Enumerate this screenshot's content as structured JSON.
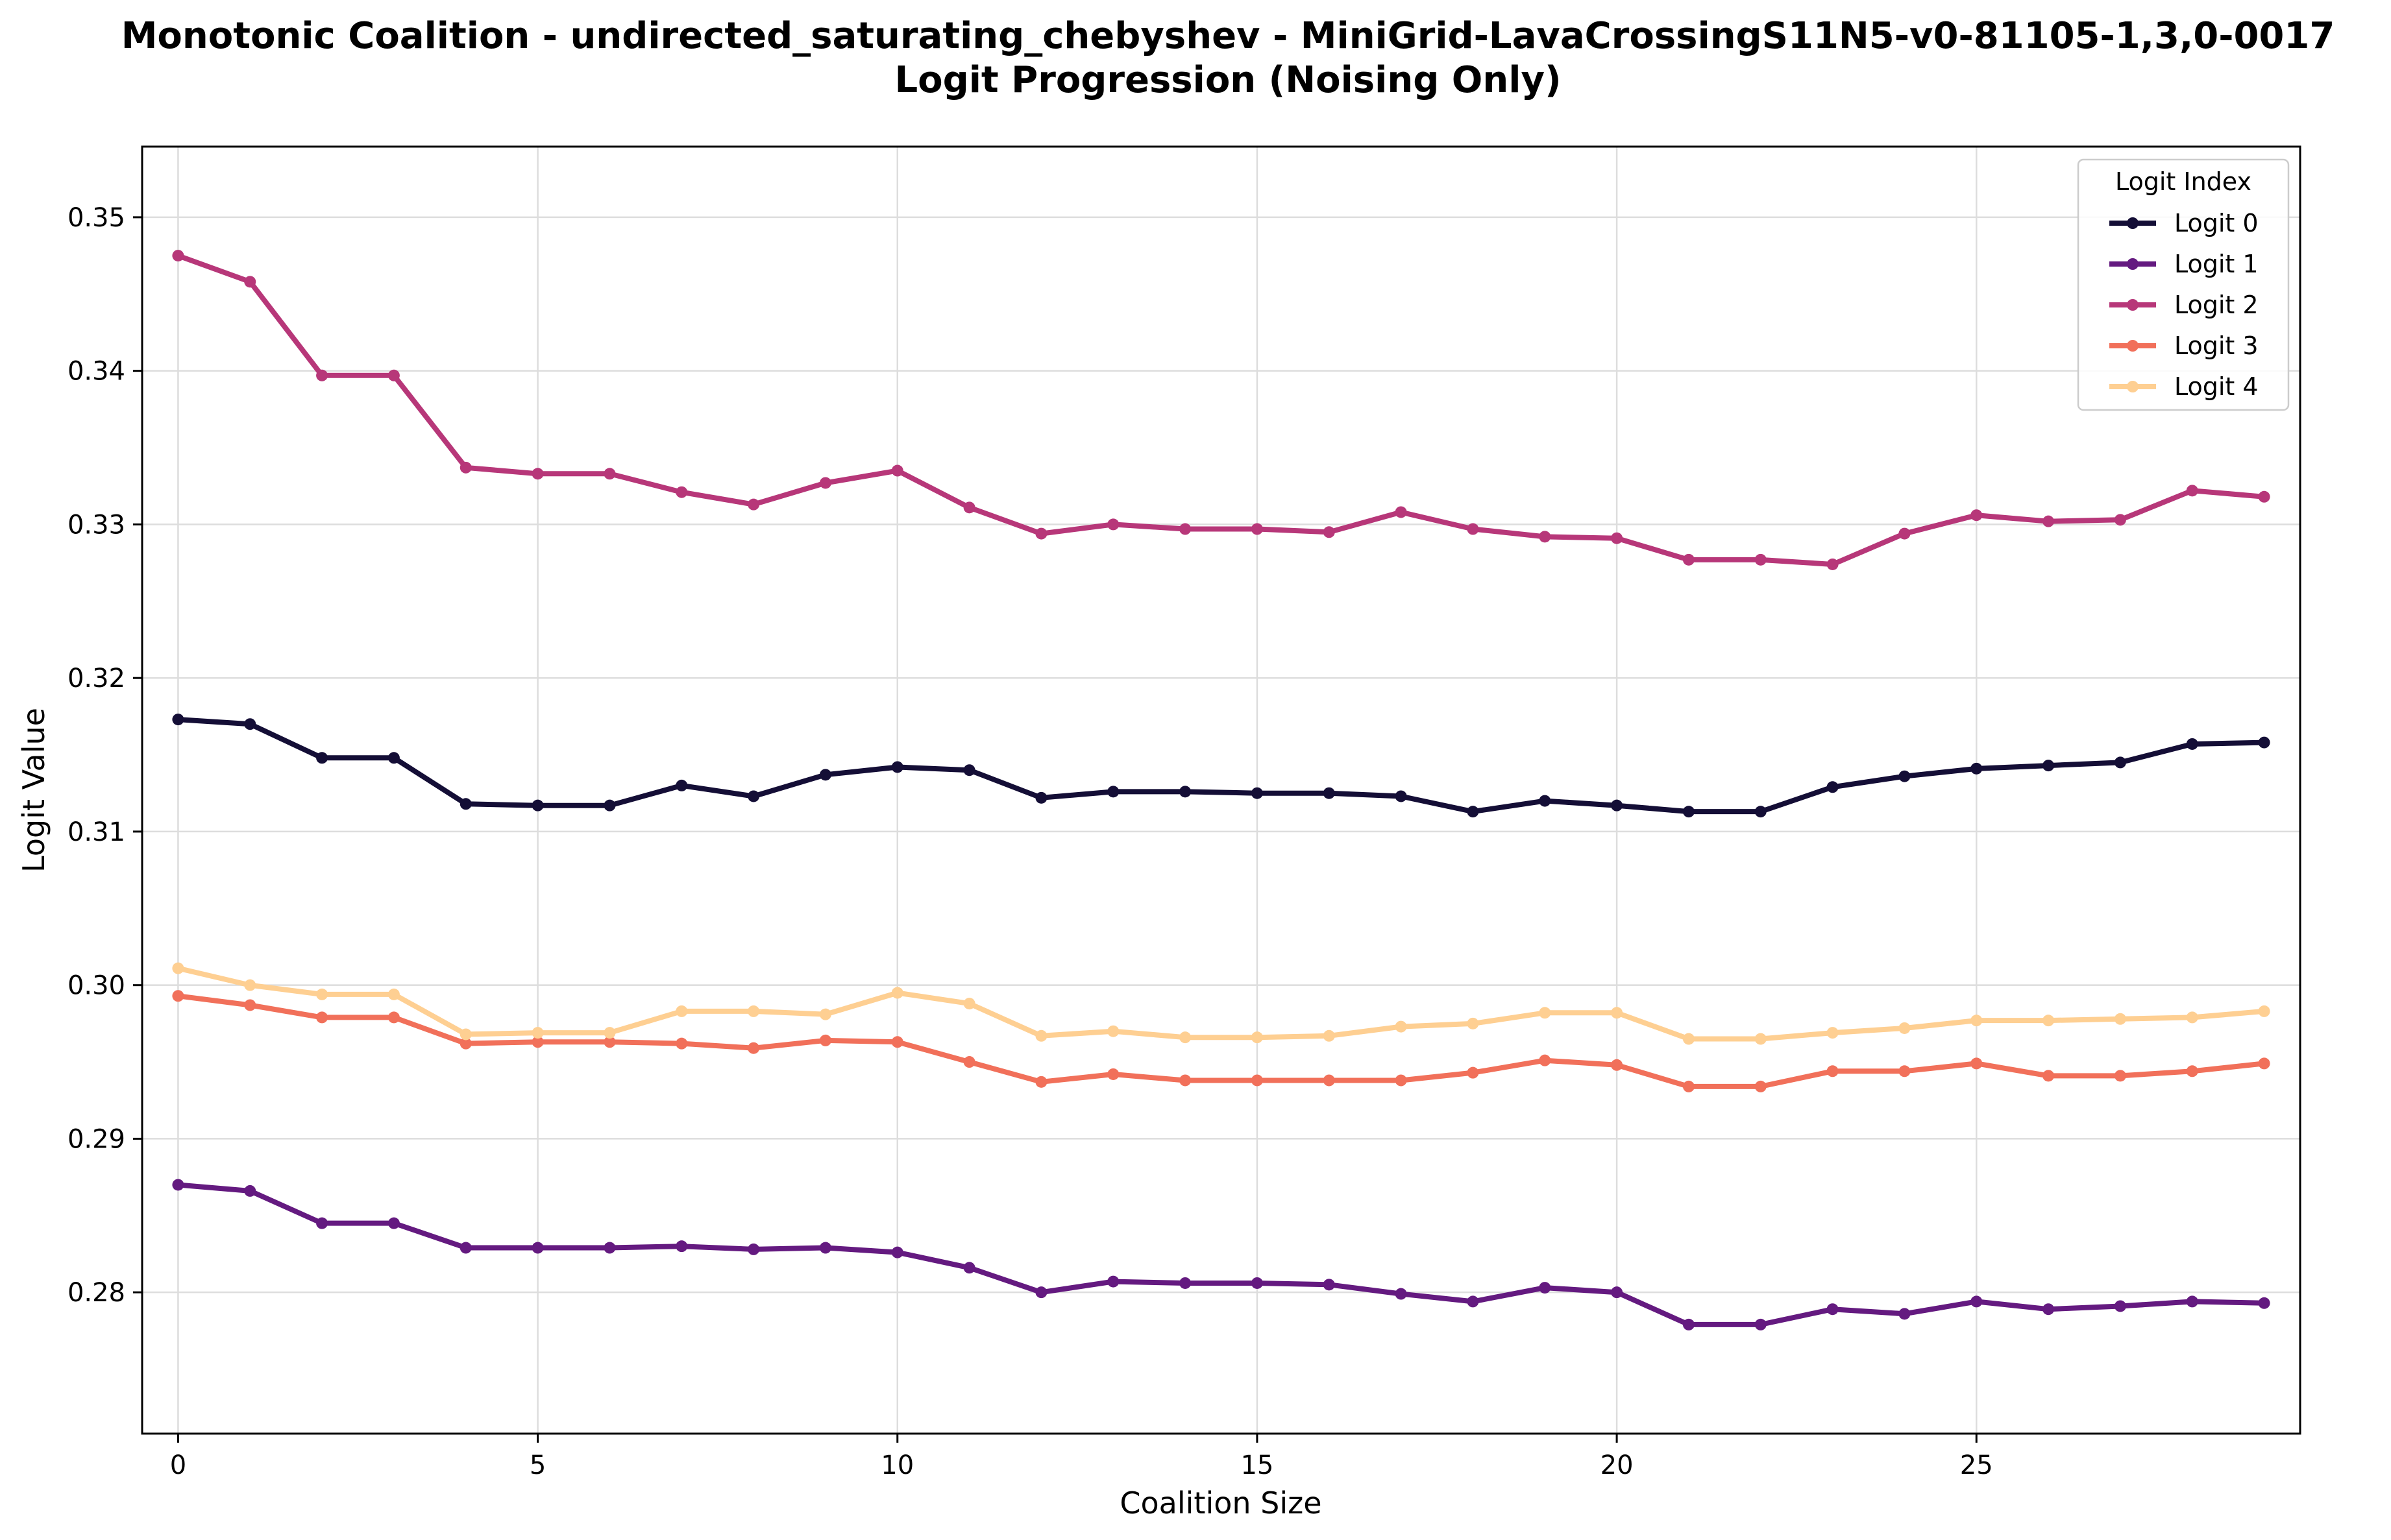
{
  "chart_data": {
    "type": "line",
    "title": "Monotonic Coalition - undirected_saturating_chebyshev - MiniGrid-LavaCrossingS11N5-v0-81105-1,3,0-0017",
    "subtitle": "Logit Progression (Noising Only)",
    "xlabel": "Coalition Size",
    "ylabel": "Logit Value",
    "xlim": [
      -0.5,
      29.5
    ],
    "ylim": [
      0.2708,
      0.3546
    ],
    "xticks": [
      0,
      5,
      10,
      15,
      20,
      25
    ],
    "yticks": [
      0.28,
      0.29,
      0.3,
      0.31,
      0.32,
      0.33,
      0.34,
      0.35
    ],
    "ytick_labels": [
      "0.28",
      "0.29",
      "0.30",
      "0.31",
      "0.32",
      "0.33",
      "0.34",
      "0.35"
    ],
    "grid": true,
    "legend_title": "Logit Index",
    "legend_position": "top-right",
    "x": [
      0,
      1,
      2,
      3,
      4,
      5,
      6,
      7,
      8,
      9,
      10,
      11,
      12,
      13,
      14,
      15,
      16,
      17,
      18,
      19,
      20,
      21,
      22,
      23,
      24,
      25,
      26,
      27,
      28,
      29
    ],
    "series": [
      {
        "name": "Logit 0",
        "color": "#140e36",
        "values": [
          0.3173,
          0.317,
          0.3148,
          0.3148,
          0.3118,
          0.3117,
          0.3117,
          0.313,
          0.3123,
          0.3137,
          0.3142,
          0.314,
          0.3122,
          0.3126,
          0.3126,
          0.3125,
          0.3125,
          0.3123,
          0.3113,
          0.312,
          0.3117,
          0.3113,
          0.3113,
          0.3129,
          0.3136,
          0.3141,
          0.3143,
          0.3145,
          0.3157,
          0.3158
        ]
      },
      {
        "name": "Logit 1",
        "color": "#641a80",
        "values": [
          0.287,
          0.2866,
          0.2845,
          0.2845,
          0.2829,
          0.2829,
          0.2829,
          0.283,
          0.2828,
          0.2829,
          0.2826,
          0.2816,
          0.28,
          0.2807,
          0.2806,
          0.2806,
          0.2805,
          0.2799,
          0.2794,
          0.2803,
          0.28,
          0.2779,
          0.2779,
          0.2789,
          0.2786,
          0.2794,
          0.2789,
          0.2791,
          0.2794,
          0.2793
        ]
      },
      {
        "name": "Logit 2",
        "color": "#b73779",
        "values": [
          0.3475,
          0.3458,
          0.3397,
          0.3397,
          0.3337,
          0.3333,
          0.3333,
          0.3321,
          0.3313,
          0.3327,
          0.3335,
          0.3311,
          0.3294,
          0.33,
          0.3297,
          0.3297,
          0.3295,
          0.3308,
          0.3297,
          0.3292,
          0.3291,
          0.3277,
          0.3277,
          0.3274,
          0.3294,
          0.3306,
          0.3302,
          0.3303,
          0.3322,
          0.3318
        ]
      },
      {
        "name": "Logit 3",
        "color": "#f1705a",
        "values": [
          0.2993,
          0.2987,
          0.2979,
          0.2979,
          0.2962,
          0.2963,
          0.2963,
          0.2962,
          0.2959,
          0.2964,
          0.2963,
          0.295,
          0.2937,
          0.2942,
          0.2938,
          0.2938,
          0.2938,
          0.2938,
          0.2943,
          0.2951,
          0.2948,
          0.2934,
          0.2934,
          0.2944,
          0.2944,
          0.2949,
          0.2941,
          0.2941,
          0.2944,
          0.2949
        ]
      },
      {
        "name": "Logit 4",
        "color": "#fecf92",
        "values": [
          0.3011,
          0.3,
          0.2994,
          0.2994,
          0.2968,
          0.2969,
          0.2969,
          0.2983,
          0.2983,
          0.2981,
          0.2995,
          0.2988,
          0.2967,
          0.297,
          0.2966,
          0.2966,
          0.2967,
          0.2973,
          0.2975,
          0.2982,
          0.2982,
          0.2965,
          0.2965,
          0.2969,
          0.2972,
          0.2977,
          0.2977,
          0.2978,
          0.2979,
          0.2983
        ]
      }
    ]
  }
}
